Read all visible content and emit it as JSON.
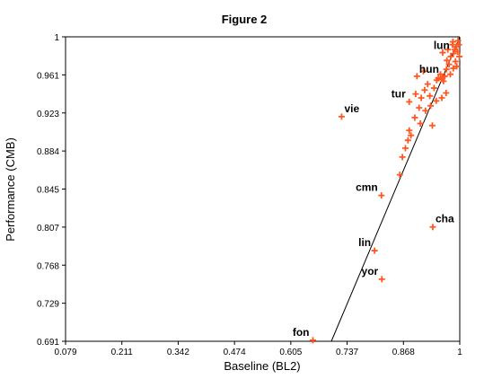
{
  "chart_data": {
    "type": "scatter",
    "title": "Figure 2",
    "xlabel": "Baseline (BL2)",
    "ylabel": "Performance (CMB)",
    "xlim": [
      0.079,
      1
    ],
    "ylim": [
      0.691,
      1
    ],
    "x_ticks": [
      "0.079",
      "0.211",
      "0.342",
      "0.474",
      "0.605",
      "0.737",
      "0.868",
      "1"
    ],
    "y_ticks": [
      "0.691",
      "0.729",
      "0.768",
      "0.807",
      "0.845",
      "0.884",
      "0.923",
      "0.961",
      "1"
    ],
    "grid": false,
    "marker_color": "#ff5722",
    "trend_line": {
      "from": [
        0.7,
        0.691
      ],
      "to": [
        1.0,
        1.0
      ]
    },
    "labeled_points": [
      {
        "label": "lun",
        "x": 0.985,
        "y": 0.983
      },
      {
        "label": "hun",
        "x": 0.96,
        "y": 0.959
      },
      {
        "label": "tur",
        "x": 0.882,
        "y": 0.934
      },
      {
        "label": "vie",
        "x": 0.724,
        "y": 0.919
      },
      {
        "label": "cmn",
        "x": 0.817,
        "y": 0.839
      },
      {
        "label": "cha",
        "x": 0.937,
        "y": 0.807
      },
      {
        "label": "lin",
        "x": 0.801,
        "y": 0.783
      },
      {
        "label": "yor",
        "x": 0.818,
        "y": 0.754
      },
      {
        "label": "fon",
        "x": 0.657,
        "y": 0.692
      }
    ],
    "points": [
      {
        "x": 0.996,
        "y": 0.996
      },
      {
        "x": 0.998,
        "y": 0.992
      },
      {
        "x": 0.992,
        "y": 0.99
      },
      {
        "x": 0.995,
        "y": 0.985
      },
      {
        "x": 0.988,
        "y": 0.987
      },
      {
        "x": 0.999,
        "y": 0.98
      },
      {
        "x": 0.983,
        "y": 0.992
      },
      {
        "x": 0.979,
        "y": 0.98
      },
      {
        "x": 0.99,
        "y": 0.975
      },
      {
        "x": 0.975,
        "y": 0.972
      },
      {
        "x": 0.985,
        "y": 0.968
      },
      {
        "x": 0.993,
        "y": 0.97
      },
      {
        "x": 0.969,
        "y": 0.967
      },
      {
        "x": 0.978,
        "y": 0.962
      },
      {
        "x": 0.965,
        "y": 0.96
      },
      {
        "x": 0.958,
        "y": 0.957
      },
      {
        "x": 0.955,
        "y": 0.962
      },
      {
        "x": 0.95,
        "y": 0.958
      },
      {
        "x": 0.962,
        "y": 0.955
      },
      {
        "x": 0.946,
        "y": 0.956
      },
      {
        "x": 0.97,
        "y": 0.976
      },
      {
        "x": 0.96,
        "y": 0.984
      },
      {
        "x": 0.972,
        "y": 0.987
      },
      {
        "x": 0.984,
        "y": 0.995
      },
      {
        "x": 0.93,
        "y": 0.94
      },
      {
        "x": 0.925,
        "y": 0.952
      },
      {
        "x": 0.918,
        "y": 0.946
      },
      {
        "x": 0.94,
        "y": 0.948
      },
      {
        "x": 0.91,
        "y": 0.938
      },
      {
        "x": 0.897,
        "y": 0.942
      },
      {
        "x": 0.905,
        "y": 0.928
      },
      {
        "x": 0.92,
        "y": 0.925
      },
      {
        "x": 0.932,
        "y": 0.93
      },
      {
        "x": 0.945,
        "y": 0.935
      },
      {
        "x": 0.958,
        "y": 0.938
      },
      {
        "x": 0.968,
        "y": 0.943
      },
      {
        "x": 0.895,
        "y": 0.918
      },
      {
        "x": 0.908,
        "y": 0.912
      },
      {
        "x": 0.936,
        "y": 0.91
      },
      {
        "x": 0.886,
        "y": 0.9
      },
      {
        "x": 0.879,
        "y": 0.895
      },
      {
        "x": 0.873,
        "y": 0.887
      },
      {
        "x": 0.866,
        "y": 0.878
      },
      {
        "x": 0.882,
        "y": 0.905
      },
      {
        "x": 0.86,
        "y": 0.86
      },
      {
        "x": 0.9,
        "y": 0.96
      },
      {
        "x": 0.915,
        "y": 0.965
      }
    ]
  }
}
